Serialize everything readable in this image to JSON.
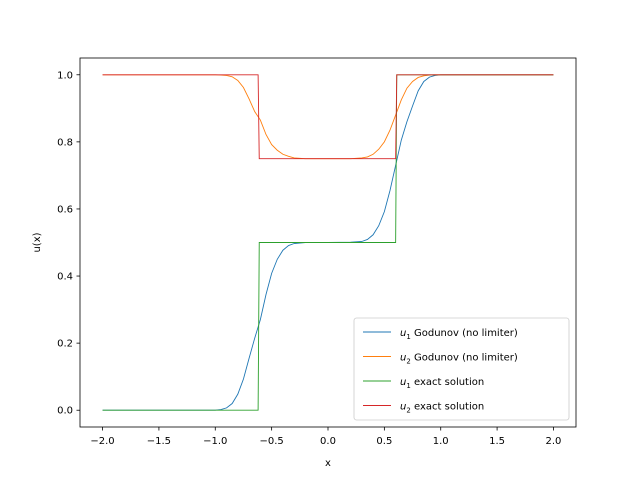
{
  "chart_data": {
    "type": "line",
    "title": "",
    "xlabel": "x",
    "ylabel": "u(x)",
    "xlim": [
      -2.2,
      2.2
    ],
    "ylim": [
      -0.05,
      1.05
    ],
    "xticks": [
      -2.0,
      -1.5,
      -1.0,
      -0.5,
      0.0,
      0.5,
      1.0,
      1.5,
      2.0
    ],
    "xtick_labels": [
      "−2.0",
      "−1.5",
      "−1.0",
      "−0.5",
      "0.0",
      "0.5",
      "1.0",
      "1.5",
      "2.0"
    ],
    "yticks": [
      0.0,
      0.2,
      0.4,
      0.6,
      0.8,
      1.0
    ],
    "ytick_labels": [
      "0.0",
      "0.2",
      "0.4",
      "0.6",
      "0.8",
      "1.0"
    ],
    "grid": false,
    "legend_position": "lower-right",
    "series": [
      {
        "label": {
          "var": "u",
          "sub": "1",
          "text": " Godunov (no limiter)"
        },
        "color": "#1f77b4",
        "x": [
          -2.0,
          -1.0,
          -0.95,
          -0.9,
          -0.85,
          -0.8,
          -0.75,
          -0.7,
          -0.65,
          -0.6,
          -0.55,
          -0.5,
          -0.45,
          -0.4,
          -0.35,
          -0.3,
          -0.2,
          0.0,
          0.2,
          0.3,
          0.35,
          0.4,
          0.45,
          0.5,
          0.55,
          0.6,
          0.65,
          0.7,
          0.75,
          0.8,
          0.85,
          0.9,
          0.95,
          1.0,
          2.0
        ],
        "y": [
          0.0,
          0.0,
          0.002,
          0.007,
          0.02,
          0.048,
          0.093,
          0.155,
          0.215,
          0.27,
          0.345,
          0.408,
          0.45,
          0.477,
          0.491,
          0.497,
          0.5,
          0.5,
          0.501,
          0.503,
          0.509,
          0.523,
          0.55,
          0.592,
          0.655,
          0.73,
          0.805,
          0.86,
          0.907,
          0.952,
          0.98,
          0.993,
          0.998,
          1.0,
          1.0
        ]
      },
      {
        "label": {
          "var": "u",
          "sub": "2",
          "text": " Godunov (no limiter)"
        },
        "color": "#ff7f0e",
        "x": [
          -2.0,
          -1.0,
          -0.95,
          -0.9,
          -0.85,
          -0.8,
          -0.75,
          -0.7,
          -0.65,
          -0.6,
          -0.55,
          -0.5,
          -0.45,
          -0.4,
          -0.35,
          -0.3,
          -0.2,
          0.0,
          0.2,
          0.3,
          0.35,
          0.4,
          0.45,
          0.5,
          0.55,
          0.6,
          0.65,
          0.7,
          0.75,
          0.8,
          0.85,
          0.9,
          0.95,
          1.0,
          2.0
        ],
        "y": [
          1.0,
          1.0,
          0.999,
          0.998,
          0.994,
          0.983,
          0.962,
          0.928,
          0.89,
          0.865,
          0.822,
          0.792,
          0.775,
          0.763,
          0.757,
          0.752,
          0.75,
          0.75,
          0.75,
          0.752,
          0.755,
          0.763,
          0.778,
          0.8,
          0.835,
          0.88,
          0.925,
          0.96,
          0.98,
          0.992,
          0.997,
          0.999,
          1.0,
          1.0,
          1.0
        ]
      },
      {
        "label": {
          "var": "u",
          "sub": "1",
          "text": " exact solution"
        },
        "color": "#2ca02c",
        "x": [
          -2.0,
          -0.62,
          -0.61,
          0.6,
          0.61,
          2.0
        ],
        "y": [
          0.0,
          0.0,
          0.5,
          0.5,
          1.0,
          1.0
        ]
      },
      {
        "label": {
          "var": "u",
          "sub": "2",
          "text": " exact solution"
        },
        "color": "#d62728",
        "x": [
          -2.0,
          -0.62,
          -0.61,
          0.6,
          0.61,
          2.0
        ],
        "y": [
          1.0,
          1.0,
          0.75,
          0.75,
          1.0,
          1.0
        ]
      }
    ]
  }
}
